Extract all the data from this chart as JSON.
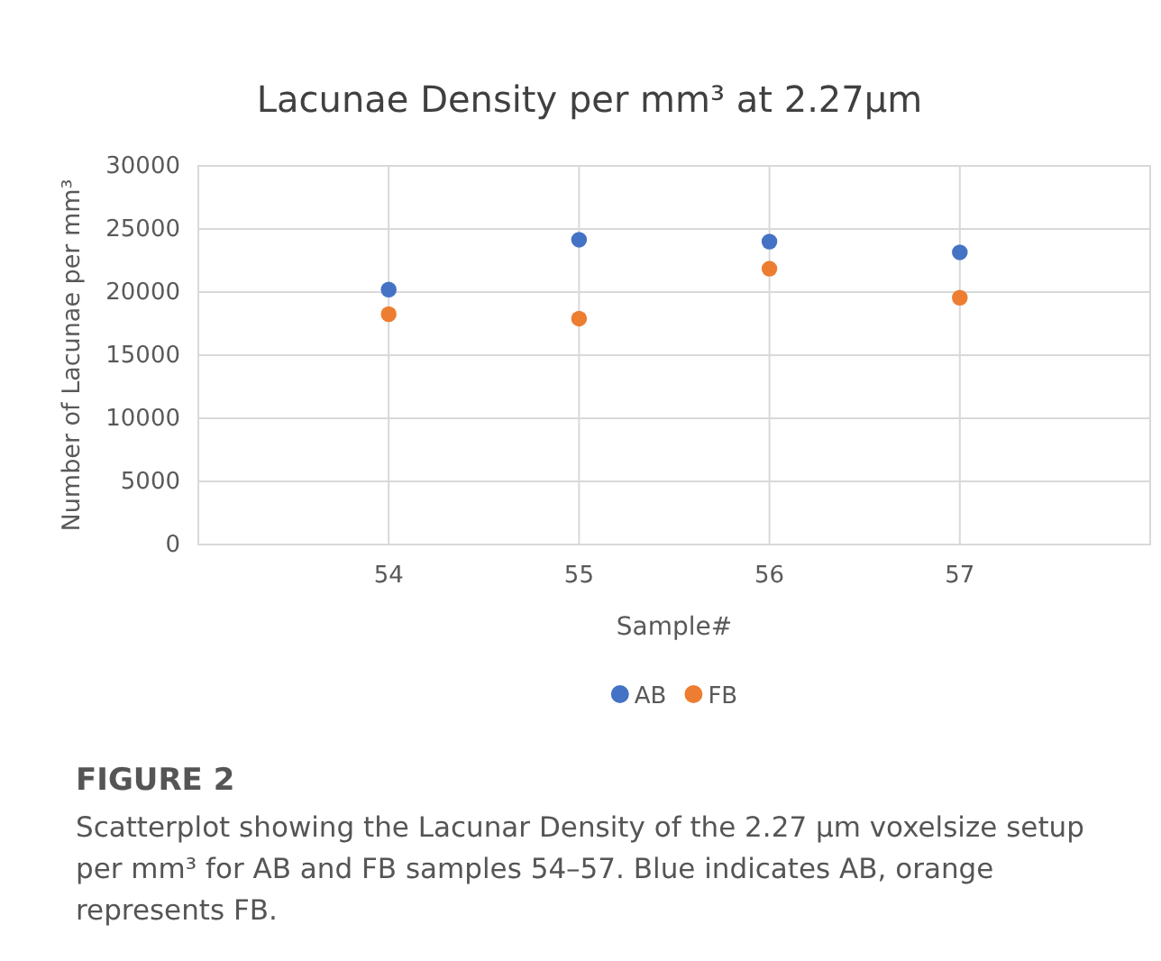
{
  "chart_data": {
    "type": "scatter",
    "title": "Lacunae Density per mm³ at 2.27µm",
    "xlabel": "Sample#",
    "ylabel": "Number of Lacunae per mm³",
    "x": [
      54,
      55,
      56,
      57
    ],
    "series": [
      {
        "name": "AB",
        "color": "#4472c4",
        "values": [
          20200,
          24150,
          24000,
          23150
        ]
      },
      {
        "name": "FB",
        "color": "#ed7d31",
        "values": [
          18250,
          17900,
          21850,
          19550
        ]
      }
    ],
    "xlim": [
      53,
      58
    ],
    "xticks": [
      54,
      55,
      56,
      57
    ],
    "ylim": [
      0,
      30000
    ],
    "yticks": [
      0,
      5000,
      10000,
      15000,
      20000,
      25000,
      30000
    ],
    "grid": true,
    "legend": "bottom",
    "marker": "circle",
    "annotations": [
      "FIGURE 2",
      "Scatterplot showing the Lacunar Density of the 2.27 µm voxelsize setup per mm³ for AB and FB samples 54–57. Blue indicates AB, orange represents FB."
    ]
  }
}
